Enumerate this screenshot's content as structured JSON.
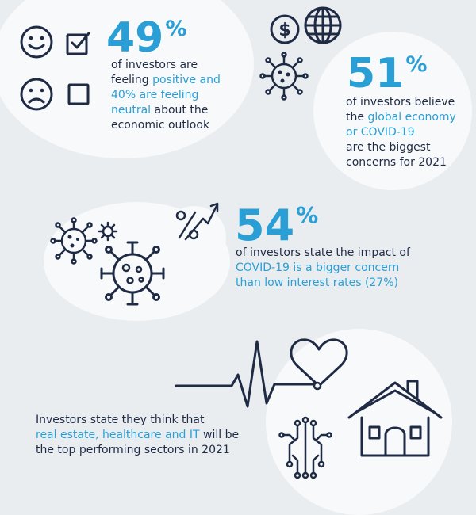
{
  "stat1": {
    "number": "49",
    "percent": "%",
    "line1": "of investors are",
    "line2_pre": "feeling ",
    "line2_hl": "positive and",
    "line3_hl": "40% are feeling",
    "line4_hl": "neutral",
    "line4_post": " about the",
    "line5": "economic outlook"
  },
  "stat2": {
    "number": "51",
    "percent": "%",
    "line1": "of investors believe",
    "line2_pre": "the ",
    "line2_hl": "global economy",
    "line3_hl": "or COVID-19",
    "line4": "are the biggest",
    "line5": "concerns for 2021"
  },
  "stat3": {
    "number": "54",
    "percent": "%",
    "line1": "of investors state the impact of",
    "line2_hl": "COVID-19 is a bigger concern",
    "line3_hl": "than low interest rates (27%)"
  },
  "stat4": {
    "line1": "Investors state they think that",
    "line2_hl": "real estate, healthcare and IT",
    "line2_post": " will be",
    "line3": "the top performing sectors in 2021"
  },
  "icons": {
    "dollar_symbol": "$"
  },
  "colors": {
    "accent": "#2a9fd6",
    "ink": "#1f2a44",
    "background": "#e9edf0",
    "circle": "#f7f9fa"
  }
}
